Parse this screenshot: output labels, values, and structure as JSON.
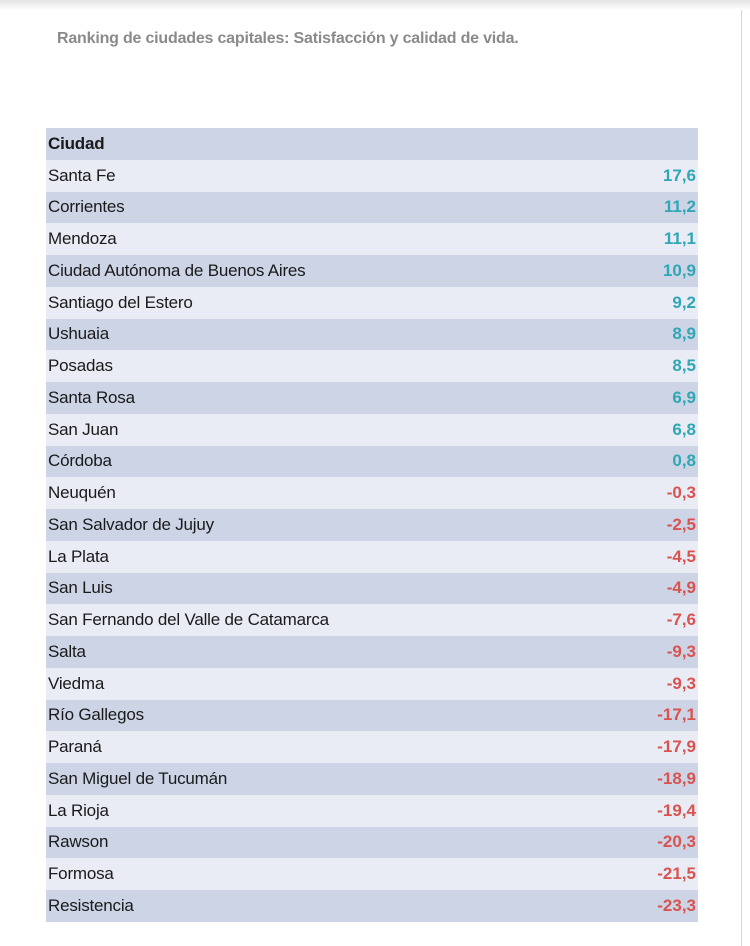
{
  "title": "Ranking de ciudades capitales: Satisfacción y calidad de vida.",
  "header": {
    "city": "Ciudad"
  },
  "colors": {
    "positive": "#2fa7b5",
    "negative": "#d9534f"
  },
  "rows": [
    {
      "city": "Santa Fe",
      "value": "17,6"
    },
    {
      "city": "Corrientes",
      "value": "11,2"
    },
    {
      "city": "Mendoza",
      "value": "11,1"
    },
    {
      "city": "Ciudad Autónoma de Buenos Aires",
      "value": "10,9"
    },
    {
      "city": "Santiago del Estero",
      "value": "9,2"
    },
    {
      "city": "Ushuaia",
      "value": "8,9"
    },
    {
      "city": "Posadas",
      "value": "8,5"
    },
    {
      "city": "Santa Rosa",
      "value": "6,9"
    },
    {
      "city": "San Juan",
      "value": "6,8"
    },
    {
      "city": "Córdoba",
      "value": "0,8"
    },
    {
      "city": "Neuquén",
      "value": "-0,3"
    },
    {
      "city": "San Salvador de Jujuy",
      "value": "-2,5"
    },
    {
      "city": "La Plata",
      "value": "-4,5"
    },
    {
      "city": "San Luis",
      "value": "-4,9"
    },
    {
      "city": "San Fernando del Valle de Catamarca",
      "value": "-7,6"
    },
    {
      "city": "Salta",
      "value": "-9,3"
    },
    {
      "city": "Viedma",
      "value": "-9,3"
    },
    {
      "city": "Río Gallegos",
      "value": "-17,1"
    },
    {
      "city": "Paraná",
      "value": "-17,9"
    },
    {
      "city": "San Miguel de Tucumán",
      "value": "-18,9"
    },
    {
      "city": "La Rioja",
      "value": "-19,4"
    },
    {
      "city": "Rawson",
      "value": "-20,3"
    },
    {
      "city": "Formosa",
      "value": "-21,5"
    },
    {
      "city": "Resistencia",
      "value": "-23,3"
    }
  ]
}
